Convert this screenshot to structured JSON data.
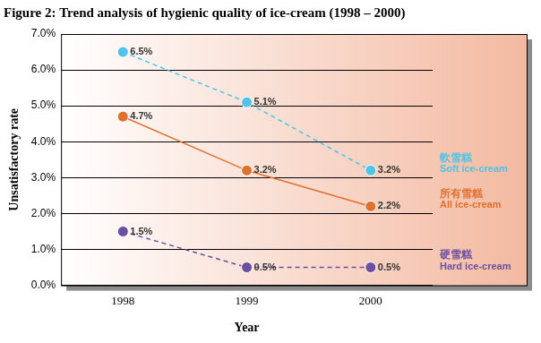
{
  "chart_data": {
    "type": "line",
    "title": "Figure 2: Trend analysis of hygienic quality of ice-cream (1998 – 2000)",
    "x_label": "Year",
    "y_label": "Unsatisfactory rate",
    "categories": [
      "1998",
      "1999",
      "2000"
    ],
    "series": [
      {
        "name": "軟雪糕 Soft ice-cream",
        "color": "#4fc3e8",
        "line_style": "dashed",
        "marker": "circle",
        "values": [
          6.5,
          5.1,
          3.2
        ],
        "value_labels": [
          "6.5%",
          "5.1%",
          "3.2%"
        ]
      },
      {
        "name": "所有雪糕 All ice-cream",
        "color": "#e0702e",
        "line_style": "solid",
        "marker": "circle",
        "values": [
          4.7,
          3.2,
          2.2
        ],
        "value_labels": [
          "4.7%",
          "3.2%",
          "2.2%"
        ]
      },
      {
        "name": "硬雪糕 Hard ice-cream",
        "color": "#6b4fa0",
        "line_style": "dashed",
        "marker": "circle",
        "values": [
          1.5,
          0.5,
          0.5
        ],
        "value_labels": [
          "1.5%",
          "0.5%",
          "0.5%"
        ]
      }
    ],
    "ylim": [
      0,
      7
    ],
    "yticks": [
      {
        "value": 0,
        "label": "0.0%"
      },
      {
        "value": 1,
        "label": "1.0%"
      },
      {
        "value": 2,
        "label": "2.0%"
      },
      {
        "value": 3,
        "label": "3.0%"
      },
      {
        "value": 4,
        "label": "4.0%"
      },
      {
        "value": 5,
        "label": "5.0%"
      },
      {
        "value": 6,
        "label": "6.0%"
      },
      {
        "value": 7,
        "label": "7.0%"
      }
    ],
    "grid": true,
    "legend": "right",
    "data_labels": true
  }
}
